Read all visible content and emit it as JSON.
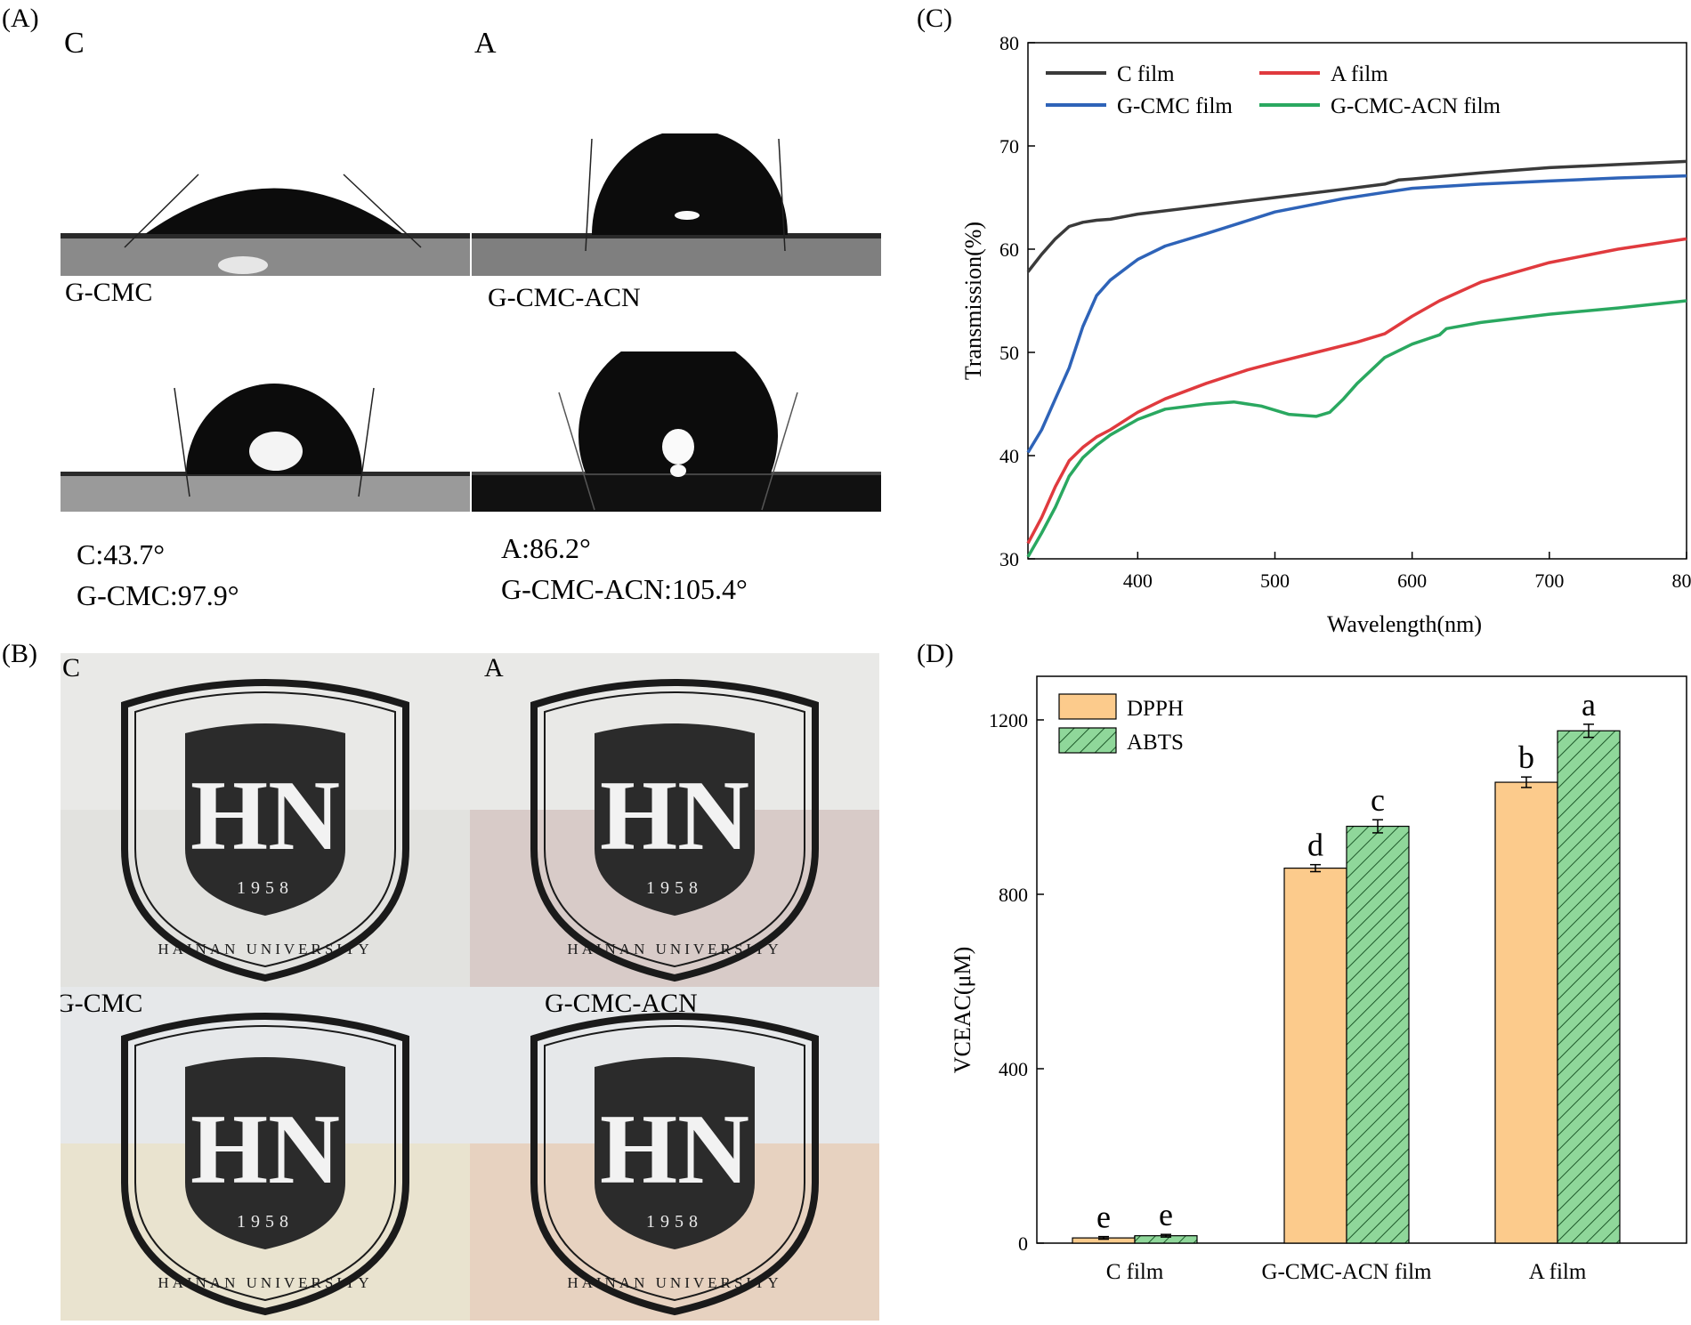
{
  "panels": {
    "a": {
      "label": "(A)",
      "photo_letters": [
        "C",
        "A"
      ],
      "captions": [
        "G-CMC",
        "G-CMC-ACN"
      ],
      "angles": [
        "C:43.7°",
        "G-CMC:97.9°",
        "A:86.2°",
        "G-CMC-ACN:105.4°"
      ]
    },
    "b": {
      "label": "(B)",
      "photo_labels": [
        "C",
        "A",
        "G-CMC",
        "G-CMC-ACN"
      ],
      "logo_text": {
        "initials": "HN",
        "year": "1958",
        "name": "HAINAN UNIVERSITY"
      }
    },
    "c": {
      "label": "(C)"
    },
    "d": {
      "label": "(D)"
    }
  },
  "colors": {
    "c_film": "#3a3a3a",
    "a_film": "#e03a3e",
    "gcmc_film": "#2e63b8",
    "gcmcacn_film": "#2aa860",
    "dpph": "#fccb8c",
    "abts": "#8fd79a"
  },
  "chart_data": [
    {
      "type": "line",
      "xlabel": "Wavelength(nm)",
      "ylabel": "Transmission(%)",
      "xlim": [
        320,
        800
      ],
      "ylim": [
        30,
        80
      ],
      "xticks": [
        400,
        500,
        600,
        700,
        800
      ],
      "yticks": [
        30,
        40,
        50,
        60,
        70,
        80
      ],
      "legend": "top-left, two columns",
      "series": [
        {
          "name": "C film",
          "color_key": "c_film",
          "x": [
            320,
            330,
            340,
            350,
            360,
            370,
            380,
            400,
            450,
            500,
            550,
            580,
            590,
            600,
            650,
            700,
            750,
            800
          ],
          "y": [
            57.8,
            59.5,
            61.0,
            62.2,
            62.6,
            62.8,
            62.9,
            63.4,
            64.2,
            65.0,
            65.8,
            66.3,
            66.7,
            66.8,
            67.4,
            67.9,
            68.2,
            68.5
          ]
        },
        {
          "name": "A film",
          "color_key": "a_film",
          "x": [
            320,
            330,
            340,
            350,
            360,
            370,
            380,
            400,
            420,
            450,
            480,
            500,
            530,
            560,
            580,
            600,
            620,
            650,
            700,
            750,
            800
          ],
          "y": [
            31.5,
            34.0,
            37.0,
            39.5,
            40.8,
            41.8,
            42.5,
            44.2,
            45.5,
            47.0,
            48.3,
            49.0,
            50.0,
            51.0,
            51.8,
            53.5,
            55.0,
            56.8,
            58.7,
            60.0,
            61.0
          ]
        },
        {
          "name": "G-CMC film",
          "color_key": "gcmc_film",
          "x": [
            320,
            330,
            340,
            350,
            360,
            370,
            380,
            400,
            420,
            450,
            500,
            550,
            580,
            600,
            650,
            700,
            750,
            800
          ],
          "y": [
            40.3,
            42.5,
            45.5,
            48.5,
            52.5,
            55.5,
            57.0,
            59.0,
            60.3,
            61.5,
            63.6,
            64.9,
            65.5,
            65.9,
            66.3,
            66.6,
            66.9,
            67.1
          ]
        },
        {
          "name": "G-CMC-ACN film",
          "color_key": "gcmcacn_film",
          "x": [
            320,
            330,
            340,
            350,
            360,
            370,
            380,
            400,
            420,
            450,
            470,
            490,
            510,
            530,
            540,
            550,
            560,
            580,
            600,
            620,
            625,
            650,
            700,
            750,
            800
          ],
          "y": [
            30.2,
            32.5,
            35.0,
            38.0,
            39.8,
            41.0,
            42.0,
            43.5,
            44.5,
            45.0,
            45.2,
            44.8,
            44.0,
            43.8,
            44.2,
            45.5,
            47.0,
            49.5,
            50.8,
            51.7,
            52.3,
            52.9,
            53.7,
            54.3,
            55.0
          ]
        }
      ]
    },
    {
      "type": "bar",
      "xlabel": "",
      "ylabel": "VCEAC(μM)",
      "ylim": [
        0,
        1300
      ],
      "yticks": [
        0,
        400,
        800,
        1200
      ],
      "categories": [
        "C film",
        "G-CMC-ACN film",
        "A film"
      ],
      "legend": "top-left",
      "series": [
        {
          "name": "DPPH",
          "color_key": "dpph",
          "pattern": "solid",
          "values": [
            12,
            860,
            1057
          ],
          "errors": [
            3,
            8,
            12
          ],
          "letters": [
            "e",
            "d",
            "b"
          ]
        },
        {
          "name": "ABTS",
          "color_key": "abts",
          "pattern": "hatched",
          "values": [
            17,
            956,
            1175
          ],
          "errors": [
            3,
            15,
            15
          ],
          "letters": [
            "e",
            "c",
            "a"
          ]
        }
      ]
    }
  ]
}
